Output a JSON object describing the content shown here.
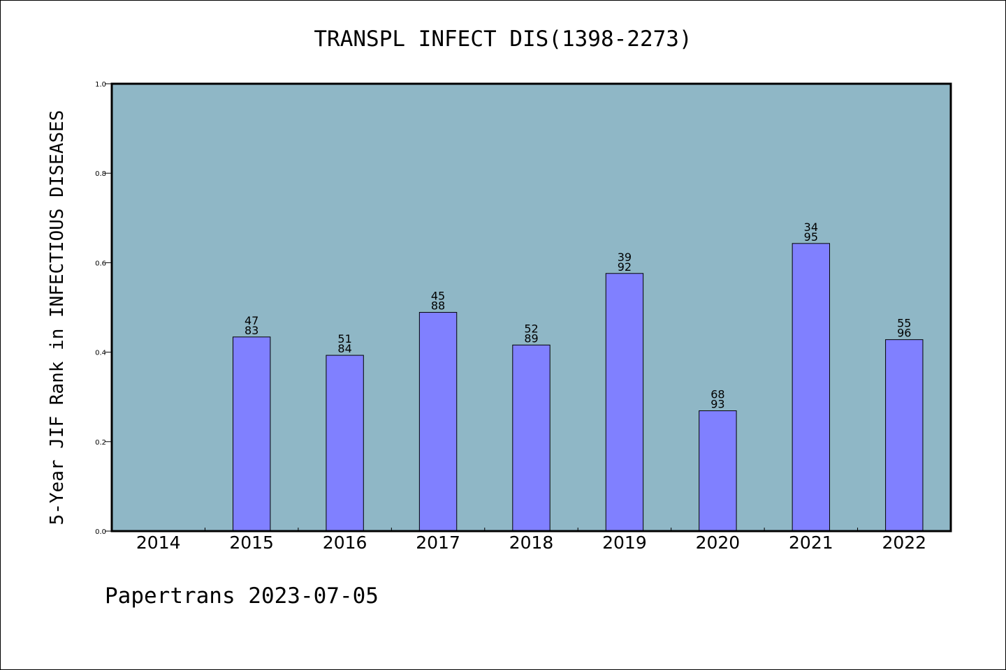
{
  "chart_data": {
    "type": "bar",
    "title": "TRANSPL INFECT DIS(1398-2273)",
    "xlabel": "",
    "ylabel": "5-Year JIF Rank in INFECTIOUS DISEASES",
    "ylim": [
      0,
      1.0
    ],
    "yticks": [
      "0.0",
      "0.2",
      "0.4",
      "0.6",
      "0.8",
      "1.0"
    ],
    "categories": [
      "2014",
      "2015",
      "2016",
      "2017",
      "2018",
      "2019",
      "2020",
      "2021",
      "2022"
    ],
    "values": [
      null,
      0.434,
      0.393,
      0.489,
      0.416,
      0.576,
      0.269,
      0.643,
      0.428
    ],
    "rank_labels": [
      null,
      "47",
      "51",
      "45",
      "52",
      "39",
      "68",
      "34",
      "55"
    ],
    "total_labels": [
      null,
      "83",
      "84",
      "88",
      "89",
      "92",
      "93",
      "95",
      "96"
    ],
    "grid": false,
    "legend": "none",
    "colors": {
      "plot_background": "#8fb7c6",
      "bar_fill": "#8080ff",
      "bar_stroke": "#000000"
    }
  },
  "footer": {
    "text": "Papertrans 2023-07-05"
  }
}
